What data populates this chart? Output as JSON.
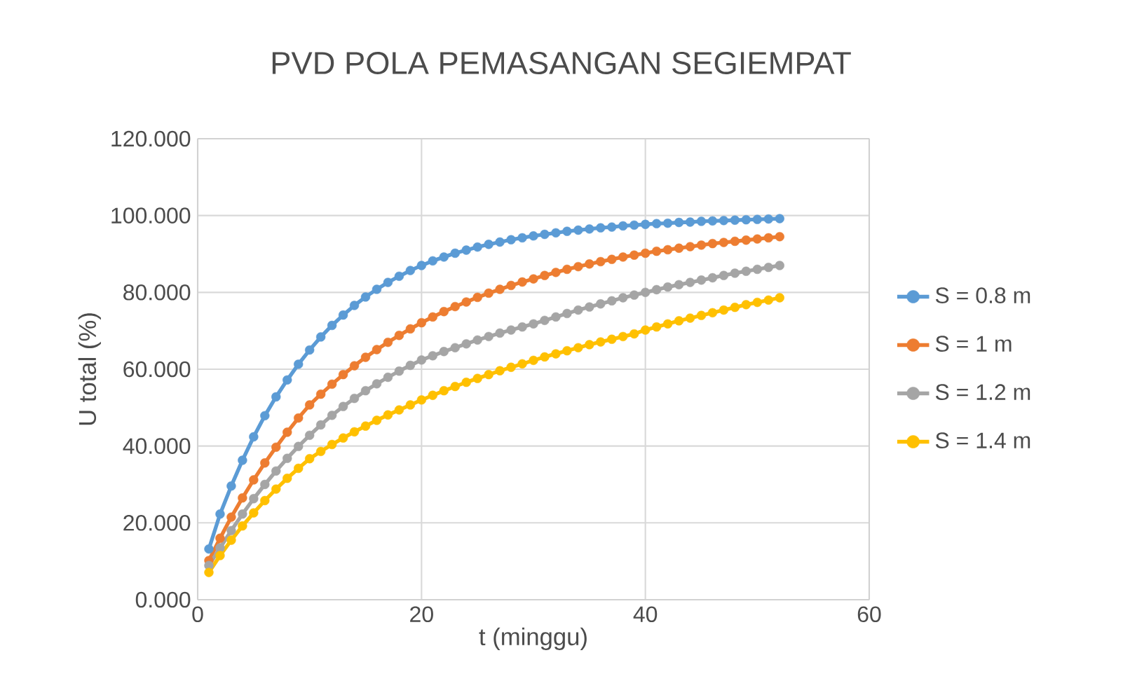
{
  "chart_data": {
    "type": "line",
    "title": "PVD POLA PEMASANGAN SEGIEMPAT",
    "xlabel": "t (minggu)",
    "ylabel": "U total (%)",
    "x": [
      1,
      2,
      3,
      4,
      5,
      6,
      7,
      8,
      9,
      10,
      11,
      12,
      13,
      14,
      15,
      16,
      17,
      18,
      19,
      20,
      21,
      22,
      23,
      24,
      25,
      26,
      27,
      28,
      29,
      30,
      31,
      32,
      33,
      34,
      35,
      36,
      37,
      38,
      39,
      40,
      41,
      42,
      43,
      44,
      45,
      46,
      47,
      48,
      49,
      50,
      51,
      52
    ],
    "series": [
      {
        "name": "S = 0.8 m",
        "color": "#5b9bd5",
        "values": [
          13.2,
          22.3,
          29.6,
          36.3,
          42.4,
          47.9,
          52.8,
          57.2,
          61.3,
          65.0,
          68.4,
          71.4,
          74.1,
          76.6,
          78.8,
          80.8,
          82.6,
          84.2,
          85.7,
          87.0,
          88.2,
          89.2,
          90.2,
          91.0,
          91.8,
          92.5,
          93.1,
          93.7,
          94.2,
          94.7,
          95.1,
          95.5,
          95.9,
          96.2,
          96.5,
          96.8,
          97.0,
          97.3,
          97.5,
          97.7,
          97.9,
          98.0,
          98.2,
          98.3,
          98.5,
          98.6,
          98.7,
          98.8,
          98.9,
          99.0,
          99.1,
          99.2
        ]
      },
      {
        "name": "S = 1 m",
        "color": "#ed7d31",
        "values": [
          10.2,
          16.0,
          21.5,
          26.5,
          31.2,
          35.6,
          39.7,
          43.6,
          47.3,
          50.7,
          53.5,
          56.1,
          58.6,
          60.9,
          63.1,
          65.1,
          67.0,
          68.8,
          70.5,
          72.1,
          73.6,
          75.0,
          76.3,
          77.5,
          78.7,
          79.8,
          80.8,
          81.8,
          82.7,
          83.5,
          84.4,
          85.2,
          86.0,
          86.7,
          87.4,
          88.0,
          88.6,
          89.2,
          89.7,
          90.2,
          90.7,
          91.1,
          91.5,
          91.9,
          92.3,
          92.7,
          93.0,
          93.3,
          93.6,
          93.9,
          94.2,
          94.5
        ]
      },
      {
        "name": "S = 1.2 m",
        "color": "#a5a5a5",
        "values": [
          8.9,
          13.5,
          18.0,
          22.3,
          26.3,
          30.0,
          33.5,
          36.8,
          39.9,
          42.8,
          45.5,
          48.0,
          50.3,
          52.4,
          54.4,
          56.2,
          57.9,
          59.5,
          61.0,
          62.4,
          63.5,
          64.6,
          65.6,
          66.6,
          67.6,
          68.5,
          69.4,
          70.2,
          71.0,
          71.8,
          72.7,
          73.6,
          74.5,
          75.4,
          76.2,
          77.0,
          77.8,
          78.6,
          79.3,
          80.0,
          80.7,
          81.4,
          82.0,
          82.6,
          83.2,
          83.8,
          84.4,
          85.0,
          85.5,
          86.0,
          86.5,
          87.0
        ]
      },
      {
        "name": "S = 1.4 m",
        "color": "#ffc000",
        "values": [
          7.1,
          11.5,
          15.5,
          19.2,
          22.6,
          25.8,
          28.8,
          31.6,
          34.2,
          36.7,
          38.6,
          40.4,
          42.1,
          43.7,
          45.2,
          46.7,
          48.1,
          49.4,
          50.7,
          52.0,
          53.2,
          54.4,
          55.5,
          56.6,
          57.6,
          58.6,
          59.6,
          60.5,
          61.4,
          62.3,
          63.2,
          64.0,
          64.8,
          65.6,
          66.4,
          67.1,
          67.8,
          68.5,
          69.2,
          70.2,
          71.0,
          71.8,
          72.6,
          73.3,
          74.0,
          74.7,
          75.4,
          76.1,
          76.8,
          77.4,
          78.0,
          78.6
        ]
      }
    ],
    "xlim": [
      0,
      60
    ],
    "xticks": [
      0,
      20,
      40,
      60
    ],
    "ylim": [
      0,
      120
    ],
    "yticks": [
      {
        "value": 0,
        "label": "0.000"
      },
      {
        "value": 20,
        "label": "20.000"
      },
      {
        "value": 40,
        "label": "40.000"
      },
      {
        "value": 60,
        "label": "60.000"
      },
      {
        "value": 80,
        "label": "80.000"
      },
      {
        "value": 100,
        "label": "100.000"
      },
      {
        "value": 120,
        "label": "120.000"
      }
    ],
    "grid": true,
    "legend": "right",
    "marker": "circle",
    "line_style": "solid"
  }
}
